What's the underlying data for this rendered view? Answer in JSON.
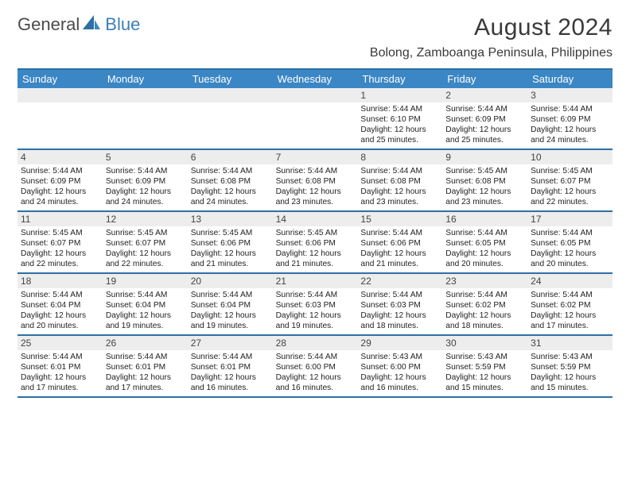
{
  "logo": {
    "part1": "General",
    "part2": "Blue"
  },
  "title": "August 2024",
  "location": "Bolong, Zamboanga Peninsula, Philippines",
  "colors": {
    "header_bg": "#3b86c4",
    "header_text": "#ffffff",
    "rule": "#2f6fa4",
    "daynum_bg": "#ededed",
    "logo_blue": "#3b7fb6",
    "logo_gray": "#4b4b4b",
    "text": "#222222",
    "page_bg": "#ffffff"
  },
  "day_names": [
    "Sunday",
    "Monday",
    "Tuesday",
    "Wednesday",
    "Thursday",
    "Friday",
    "Saturday"
  ],
  "weeks": [
    [
      {
        "n": "",
        "sr": "",
        "ss": "",
        "dl": ""
      },
      {
        "n": "",
        "sr": "",
        "ss": "",
        "dl": ""
      },
      {
        "n": "",
        "sr": "",
        "ss": "",
        "dl": ""
      },
      {
        "n": "",
        "sr": "",
        "ss": "",
        "dl": ""
      },
      {
        "n": "1",
        "sr": "5:44 AM",
        "ss": "6:10 PM",
        "dl": "12 hours and 25 minutes."
      },
      {
        "n": "2",
        "sr": "5:44 AM",
        "ss": "6:09 PM",
        "dl": "12 hours and 25 minutes."
      },
      {
        "n": "3",
        "sr": "5:44 AM",
        "ss": "6:09 PM",
        "dl": "12 hours and 24 minutes."
      }
    ],
    [
      {
        "n": "4",
        "sr": "5:44 AM",
        "ss": "6:09 PM",
        "dl": "12 hours and 24 minutes."
      },
      {
        "n": "5",
        "sr": "5:44 AM",
        "ss": "6:09 PM",
        "dl": "12 hours and 24 minutes."
      },
      {
        "n": "6",
        "sr": "5:44 AM",
        "ss": "6:08 PM",
        "dl": "12 hours and 24 minutes."
      },
      {
        "n": "7",
        "sr": "5:44 AM",
        "ss": "6:08 PM",
        "dl": "12 hours and 23 minutes."
      },
      {
        "n": "8",
        "sr": "5:44 AM",
        "ss": "6:08 PM",
        "dl": "12 hours and 23 minutes."
      },
      {
        "n": "9",
        "sr": "5:45 AM",
        "ss": "6:08 PM",
        "dl": "12 hours and 23 minutes."
      },
      {
        "n": "10",
        "sr": "5:45 AM",
        "ss": "6:07 PM",
        "dl": "12 hours and 22 minutes."
      }
    ],
    [
      {
        "n": "11",
        "sr": "5:45 AM",
        "ss": "6:07 PM",
        "dl": "12 hours and 22 minutes."
      },
      {
        "n": "12",
        "sr": "5:45 AM",
        "ss": "6:07 PM",
        "dl": "12 hours and 22 minutes."
      },
      {
        "n": "13",
        "sr": "5:45 AM",
        "ss": "6:06 PM",
        "dl": "12 hours and 21 minutes."
      },
      {
        "n": "14",
        "sr": "5:45 AM",
        "ss": "6:06 PM",
        "dl": "12 hours and 21 minutes."
      },
      {
        "n": "15",
        "sr": "5:44 AM",
        "ss": "6:06 PM",
        "dl": "12 hours and 21 minutes."
      },
      {
        "n": "16",
        "sr": "5:44 AM",
        "ss": "6:05 PM",
        "dl": "12 hours and 20 minutes."
      },
      {
        "n": "17",
        "sr": "5:44 AM",
        "ss": "6:05 PM",
        "dl": "12 hours and 20 minutes."
      }
    ],
    [
      {
        "n": "18",
        "sr": "5:44 AM",
        "ss": "6:04 PM",
        "dl": "12 hours and 20 minutes."
      },
      {
        "n": "19",
        "sr": "5:44 AM",
        "ss": "6:04 PM",
        "dl": "12 hours and 19 minutes."
      },
      {
        "n": "20",
        "sr": "5:44 AM",
        "ss": "6:04 PM",
        "dl": "12 hours and 19 minutes."
      },
      {
        "n": "21",
        "sr": "5:44 AM",
        "ss": "6:03 PM",
        "dl": "12 hours and 19 minutes."
      },
      {
        "n": "22",
        "sr": "5:44 AM",
        "ss": "6:03 PM",
        "dl": "12 hours and 18 minutes."
      },
      {
        "n": "23",
        "sr": "5:44 AM",
        "ss": "6:02 PM",
        "dl": "12 hours and 18 minutes."
      },
      {
        "n": "24",
        "sr": "5:44 AM",
        "ss": "6:02 PM",
        "dl": "12 hours and 17 minutes."
      }
    ],
    [
      {
        "n": "25",
        "sr": "5:44 AM",
        "ss": "6:01 PM",
        "dl": "12 hours and 17 minutes."
      },
      {
        "n": "26",
        "sr": "5:44 AM",
        "ss": "6:01 PM",
        "dl": "12 hours and 17 minutes."
      },
      {
        "n": "27",
        "sr": "5:44 AM",
        "ss": "6:01 PM",
        "dl": "12 hours and 16 minutes."
      },
      {
        "n": "28",
        "sr": "5:44 AM",
        "ss": "6:00 PM",
        "dl": "12 hours and 16 minutes."
      },
      {
        "n": "29",
        "sr": "5:43 AM",
        "ss": "6:00 PM",
        "dl": "12 hours and 16 minutes."
      },
      {
        "n": "30",
        "sr": "5:43 AM",
        "ss": "5:59 PM",
        "dl": "12 hours and 15 minutes."
      },
      {
        "n": "31",
        "sr": "5:43 AM",
        "ss": "5:59 PM",
        "dl": "12 hours and 15 minutes."
      }
    ]
  ],
  "labels": {
    "sunrise": "Sunrise:",
    "sunset": "Sunset:",
    "daylight": "Daylight:"
  }
}
